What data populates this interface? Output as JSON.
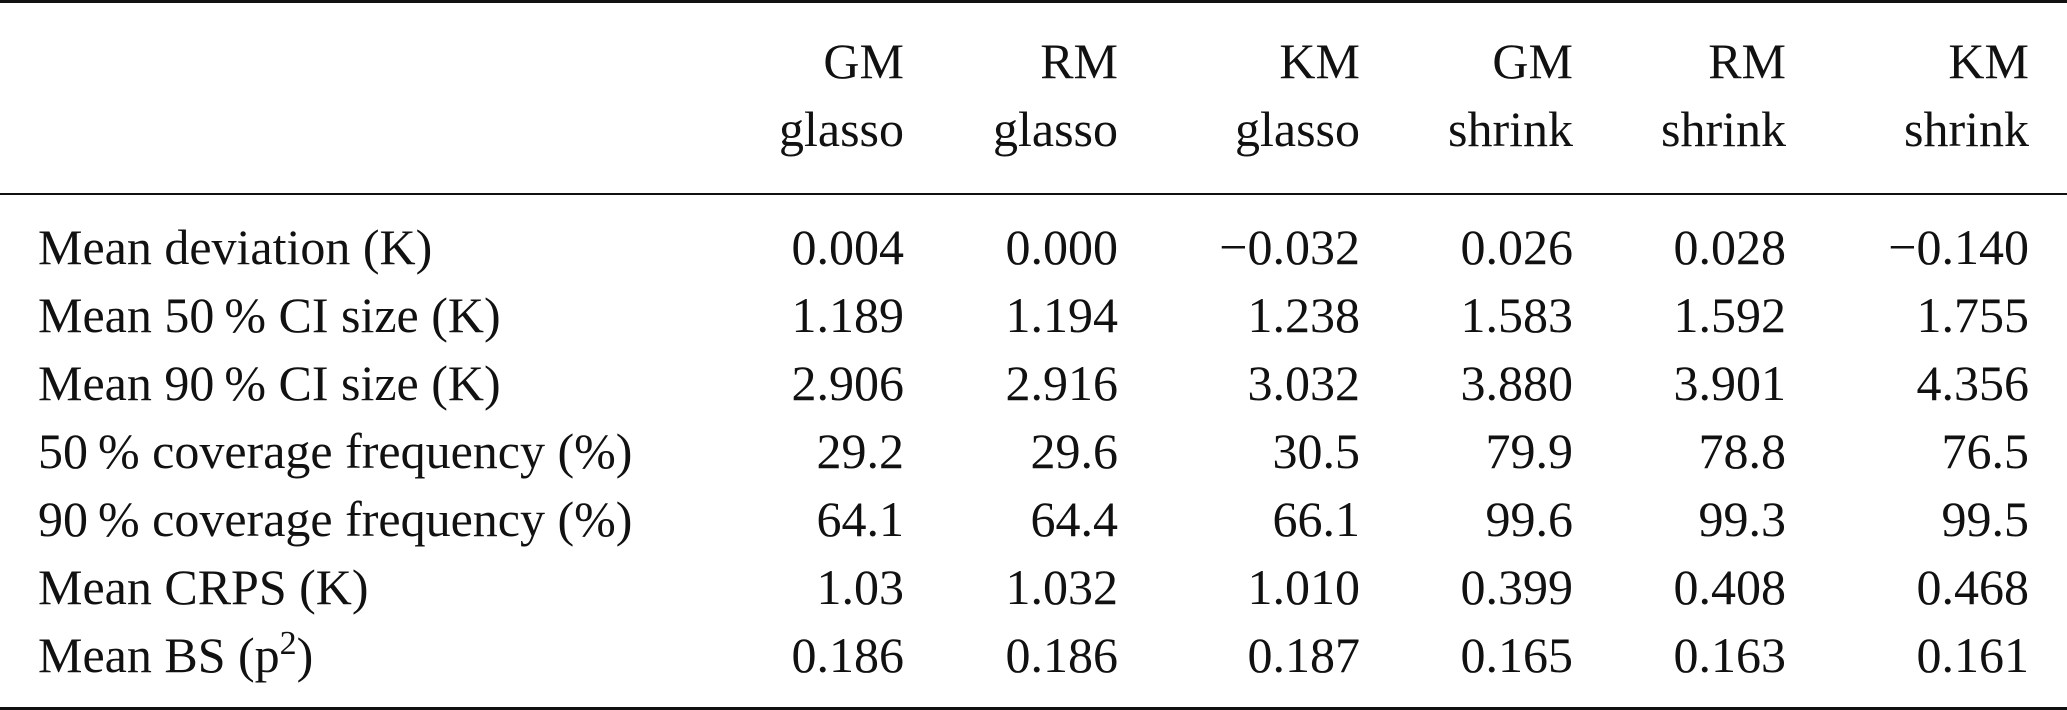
{
  "table": {
    "columns": [
      {
        "line1": "GM",
        "line2": "glasso"
      },
      {
        "line1": "RM",
        "line2": "glasso"
      },
      {
        "line1": "KM",
        "line2": "glasso"
      },
      {
        "line1": "GM",
        "line2": "shrink"
      },
      {
        "line1": "RM",
        "line2": "shrink"
      },
      {
        "line1": "KM",
        "line2": "shrink"
      }
    ],
    "rows": [
      {
        "label": "Mean deviation (K)",
        "values": [
          "0.004",
          "0.000",
          "−0.032",
          "0.026",
          "0.028",
          "−0.140"
        ]
      },
      {
        "label": "Mean 50 % CI size (K)",
        "values": [
          "1.189",
          "1.194",
          "1.238",
          "1.583",
          "1.592",
          "1.755"
        ]
      },
      {
        "label": "Mean 90 % CI size (K)",
        "values": [
          "2.906",
          "2.916",
          "3.032",
          "3.880",
          "3.901",
          "4.356"
        ]
      },
      {
        "label": "50 % coverage frequency (%)",
        "values": [
          "29.2",
          "29.6",
          "30.5",
          "79.9",
          "78.8",
          "76.5"
        ]
      },
      {
        "label": "90 % coverage frequency (%)",
        "values": [
          "64.1",
          "64.4",
          "66.1",
          "99.6",
          "99.3",
          "99.5"
        ]
      },
      {
        "label": "Mean CRPS (K)",
        "values": [
          "1.03",
          "1.032",
          "1.010",
          "0.399",
          "0.408",
          "0.468"
        ]
      },
      {
        "label_prefix": "Mean BS (p",
        "label_sup": "2",
        "label_suffix": ")",
        "values": [
          "0.186",
          "0.186",
          "0.187",
          "0.165",
          "0.163",
          "0.161"
        ]
      }
    ]
  }
}
